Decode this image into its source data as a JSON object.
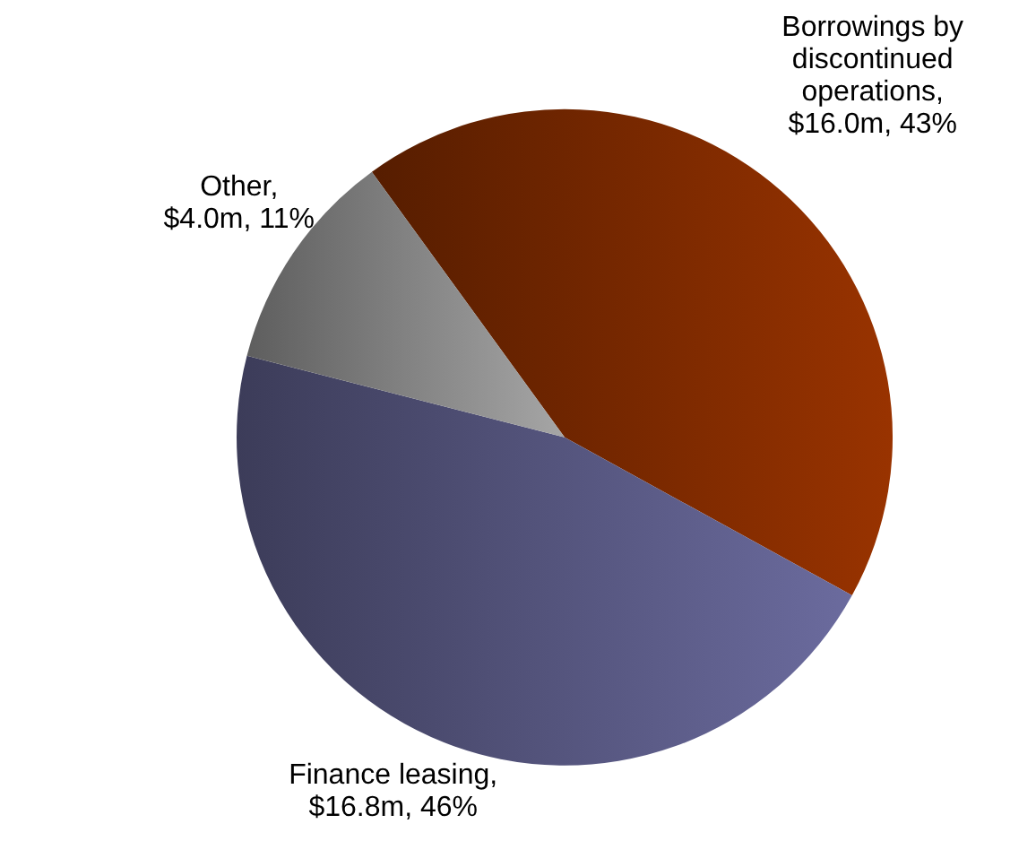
{
  "chart_data": {
    "type": "pie",
    "categories": [
      "Borrowings by discontinued operations, $16.0m",
      "Finance leasing, $16.8m",
      "Other, $4.0m"
    ],
    "values": [
      43,
      46,
      11
    ],
    "value_labels": [
      "43%",
      "46%",
      "11%"
    ],
    "colors": [
      "#993300",
      "#6b6b9e",
      "#a6a6a6"
    ]
  }
}
